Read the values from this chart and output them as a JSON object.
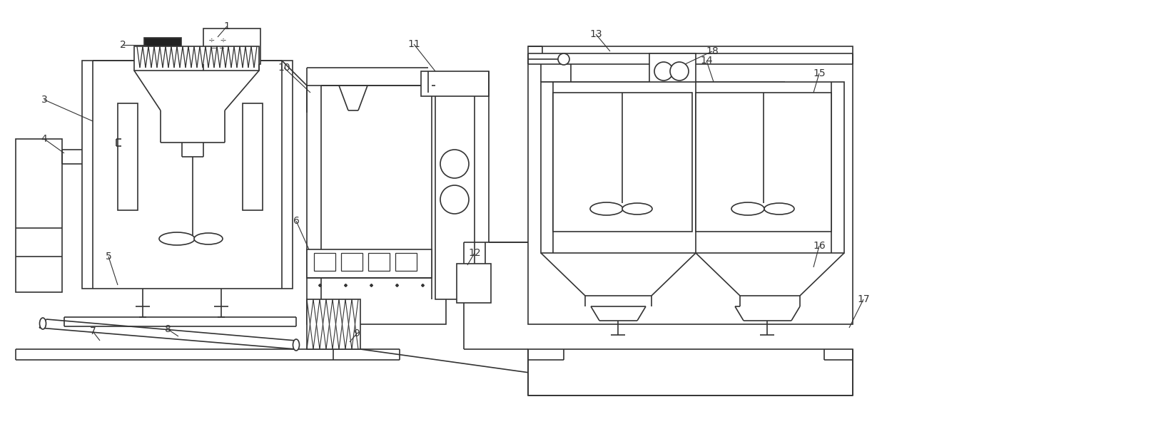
{
  "bg": "#ffffff",
  "lc": "#333333",
  "lw": 1.2,
  "fig_w": 16.41,
  "fig_h": 5.95,
  "dpi": 100
}
